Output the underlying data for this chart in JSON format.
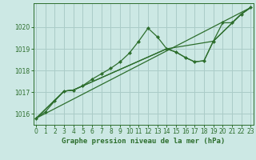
{
  "background_color": "#cce8e4",
  "grid_color": "#aaccc8",
  "line_color": "#2d6e2d",
  "marker_color": "#2d6e2d",
  "title": "Graphe pression niveau de la mer (hPa)",
  "title_fontsize": 6.5,
  "xlim": [
    -0.3,
    23.3
  ],
  "ylim": [
    1015.5,
    1021.1
  ],
  "yticks": [
    1016,
    1017,
    1018,
    1019,
    1020
  ],
  "xticks": [
    0,
    1,
    2,
    3,
    4,
    5,
    6,
    7,
    8,
    9,
    10,
    11,
    12,
    13,
    14,
    15,
    16,
    17,
    18,
    19,
    20,
    21,
    22,
    23
  ],
  "series": [
    {
      "x": [
        0,
        1,
        2,
        3,
        4,
        5,
        6,
        7,
        8,
        9,
        10,
        11,
        12,
        13,
        14,
        15,
        16,
        17,
        18,
        19,
        20,
        21,
        22,
        23
      ],
      "y": [
        1015.8,
        1016.1,
        1016.6,
        1017.05,
        1017.1,
        1017.3,
        1017.6,
        1017.85,
        1018.1,
        1018.4,
        1018.8,
        1019.35,
        1019.95,
        1019.55,
        1019.0,
        1018.85,
        1018.6,
        1018.4,
        1018.45,
        1019.35,
        1020.2,
        1020.2,
        1020.6,
        1020.9
      ],
      "with_markers": true
    },
    {
      "x": [
        0,
        3,
        4,
        14,
        19,
        22,
        23
      ],
      "y": [
        1015.8,
        1017.05,
        1017.1,
        1019.0,
        1019.35,
        1020.6,
        1020.9
      ],
      "with_markers": false
    },
    {
      "x": [
        0,
        3,
        4,
        14,
        15,
        16,
        17,
        18,
        19,
        22,
        23
      ],
      "y": [
        1015.8,
        1017.05,
        1017.1,
        1019.0,
        1018.85,
        1018.6,
        1018.4,
        1018.45,
        1019.35,
        1020.6,
        1020.9
      ],
      "with_markers": false
    },
    {
      "x": [
        0,
        23
      ],
      "y": [
        1015.8,
        1020.9
      ],
      "with_markers": false
    }
  ]
}
